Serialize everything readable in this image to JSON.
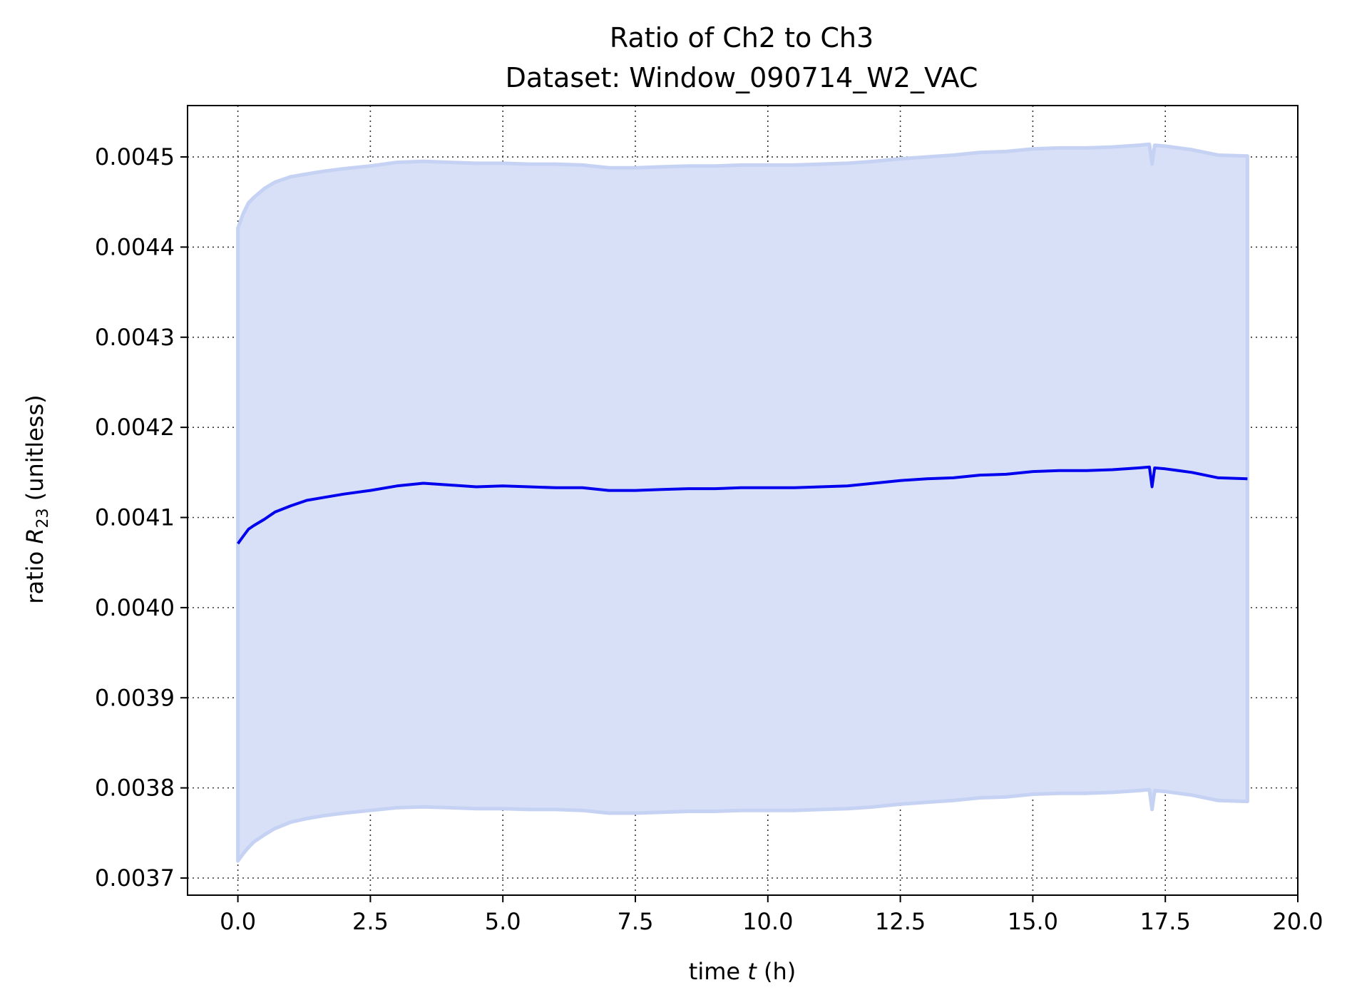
{
  "chart_data": {
    "type": "line",
    "title_line1": "Ratio of Ch2 to Ch3",
    "title_line2": "Dataset: Window_090714_W2_VAC",
    "xlabel_prefix": "time ",
    "xlabel_var": "t",
    "xlabel_suffix": " (h)",
    "ylabel_prefix": "ratio ",
    "ylabel_var": "R",
    "ylabel_sub": "23",
    "ylabel_suffix": " (unitless)",
    "xlim": [
      -0.95,
      20.0
    ],
    "ylim": [
      0.003681,
      0.004557
    ],
    "xticks": [
      0.0,
      2.5,
      5.0,
      7.5,
      10.0,
      12.5,
      15.0,
      17.5,
      20.0
    ],
    "xtick_labels": [
      "0.0",
      "2.5",
      "5.0",
      "7.5",
      "10.0",
      "12.5",
      "15.0",
      "17.5",
      "20.0"
    ],
    "yticks": [
      0.0037,
      0.0038,
      0.0039,
      0.004,
      0.0041,
      0.0042,
      0.0043,
      0.0044,
      0.0045
    ],
    "ytick_labels": [
      "0.0037",
      "0.0038",
      "0.0039",
      "0.0040",
      "0.0041",
      "0.0042",
      "0.0043",
      "0.0044",
      "0.0045"
    ],
    "grid": true,
    "line_color": "#0000ee",
    "band_fill_color": "#d8e0f7",
    "band_edge_color": "#c5d2f3",
    "series": [
      {
        "x": [
          0.0,
          0.1,
          0.2,
          0.3,
          0.5,
          0.7,
          1.0,
          1.3,
          1.6,
          2.0,
          2.5,
          3.0,
          3.5,
          4.0,
          4.5,
          5.0,
          5.5,
          6.0,
          6.5,
          7.0,
          7.5,
          8.0,
          8.5,
          9.0,
          9.5,
          10.0,
          10.5,
          11.0,
          11.5,
          12.0,
          12.5,
          13.0,
          13.5,
          14.0,
          14.5,
          15.0,
          15.5,
          16.0,
          16.5,
          17.0,
          17.2,
          17.25,
          17.3,
          17.5,
          18.0,
          18.5,
          19.05
        ],
        "y": [
          0.004071,
          0.004079,
          0.004087,
          0.004091,
          0.004098,
          0.004106,
          0.004113,
          0.004119,
          0.004122,
          0.004126,
          0.00413,
          0.004135,
          0.004138,
          0.004136,
          0.004134,
          0.004135,
          0.004134,
          0.004133,
          0.004133,
          0.00413,
          0.00413,
          0.004131,
          0.004132,
          0.004132,
          0.004133,
          0.004133,
          0.004133,
          0.004134,
          0.004135,
          0.004138,
          0.004141,
          0.004143,
          0.004144,
          0.004147,
          0.004148,
          0.004151,
          0.004152,
          0.004152,
          0.004153,
          0.004155,
          0.004156,
          0.004134,
          0.004155,
          0.004154,
          0.00415,
          0.004144,
          0.004143
        ],
        "upper": [
          0.004421,
          0.004437,
          0.004449,
          0.004455,
          0.004465,
          0.004472,
          0.004478,
          0.004481,
          0.004484,
          0.004487,
          0.00449,
          0.004494,
          0.004495,
          0.004494,
          0.004493,
          0.004493,
          0.004492,
          0.004492,
          0.004491,
          0.004488,
          0.004488,
          0.004489,
          0.00449,
          0.00449,
          0.004491,
          0.004491,
          0.004491,
          0.004492,
          0.004493,
          0.004495,
          0.004498,
          0.0045,
          0.004502,
          0.004505,
          0.004506,
          0.004509,
          0.00451,
          0.00451,
          0.004511,
          0.004513,
          0.004514,
          0.004492,
          0.004513,
          0.004512,
          0.004508,
          0.004502,
          0.004501
        ],
        "lower": [
          0.003719,
          0.003727,
          0.003734,
          0.00374,
          0.003748,
          0.003755,
          0.003762,
          0.003766,
          0.003769,
          0.003772,
          0.003775,
          0.003778,
          0.003779,
          0.003778,
          0.003777,
          0.003777,
          0.003776,
          0.003776,
          0.003775,
          0.003772,
          0.003772,
          0.003773,
          0.003774,
          0.003774,
          0.003775,
          0.003775,
          0.003775,
          0.003776,
          0.003777,
          0.003779,
          0.003782,
          0.003784,
          0.003786,
          0.003789,
          0.00379,
          0.003793,
          0.003794,
          0.003794,
          0.003795,
          0.003797,
          0.003798,
          0.003776,
          0.003797,
          0.003796,
          0.003792,
          0.003786,
          0.003785
        ]
      }
    ]
  }
}
